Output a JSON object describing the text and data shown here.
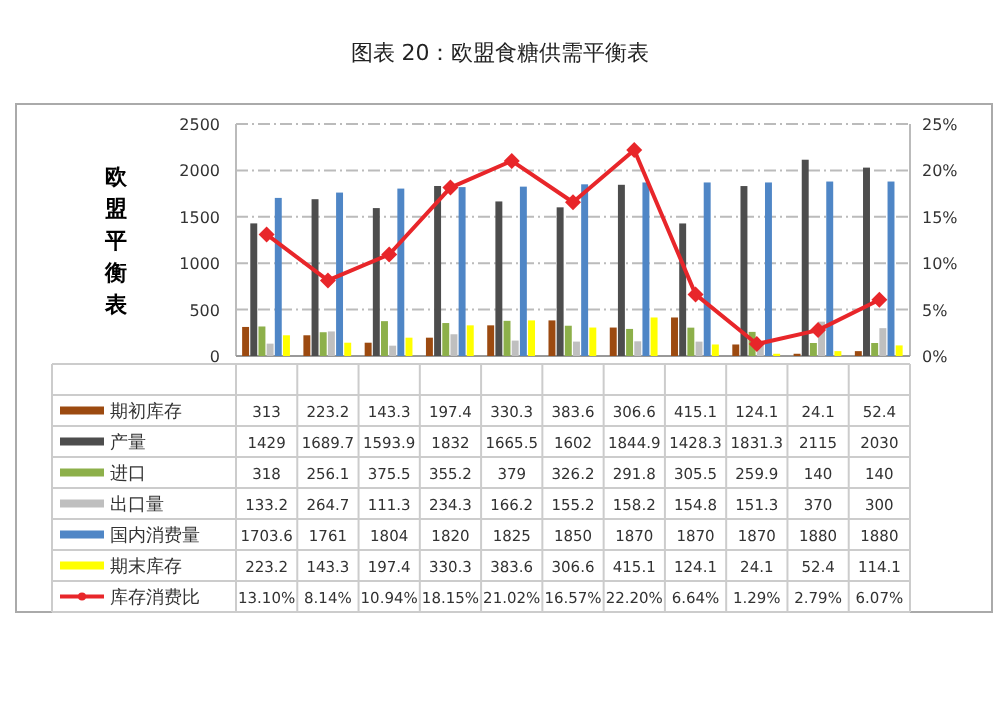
{
  "chart_data": {
    "type": "bar",
    "title": "图表 20：欧盟食糖供需平衡表",
    "ylabel": "欧盟平衡表",
    "categories": [
      null,
      null,
      null,
      null,
      null,
      null,
      null,
      null,
      null,
      null,
      null
    ],
    "ylim": [
      0,
      2500
    ],
    "yticks": [
      0,
      500,
      1000,
      1500,
      2000,
      2500
    ],
    "y2lim": [
      0,
      25
    ],
    "y2ticks": [
      {
        "value": 0,
        "label": "0%"
      },
      {
        "value": 5,
        "label": "5%"
      },
      {
        "value": 10,
        "label": "10%"
      },
      {
        "value": 15,
        "label": "15%"
      },
      {
        "value": 20,
        "label": "20%"
      },
      {
        "value": 25,
        "label": "25%"
      }
    ],
    "grid": "y",
    "legend": "bottom",
    "series": [
      {
        "name": "期初库存",
        "color": "#9c4a10",
        "values": [
          313,
          223.2,
          143.3,
          197.4,
          330.3,
          383.6,
          306.6,
          415.1,
          124.1,
          24.1,
          52.4
        ],
        "value_labels": [
          "313",
          "223.2",
          "143.3",
          "197.4",
          "330.3",
          "383.6",
          "306.6",
          "415.1",
          "124.1",
          "24.1",
          "52.4"
        ]
      },
      {
        "name": "产量",
        "color": "#4d4d4d",
        "values": [
          1429,
          1689.7,
          1593.9,
          1832,
          1665.5,
          1602,
          1844.9,
          1428.3,
          1831.3,
          2115,
          2030
        ],
        "value_labels": [
          "1429",
          "1689.7",
          "1593.9",
          "1832",
          "1665.5",
          "1602",
          "1844.9",
          "1428.3",
          "1831.3",
          "2115",
          "2030"
        ]
      },
      {
        "name": "进口",
        "color": "#8db04a",
        "values": [
          318,
          256.1,
          375.5,
          355.2,
          379,
          326.2,
          291.8,
          305.5,
          259.9,
          140,
          140
        ],
        "value_labels": [
          "318",
          "256.1",
          "375.5",
          "355.2",
          "379",
          "326.2",
          "291.8",
          "305.5",
          "259.9",
          "140",
          "140"
        ]
      },
      {
        "name": "出口量",
        "color": "#bfbfbf",
        "values": [
          133.2,
          264.7,
          111.3,
          234.3,
          166.2,
          155.2,
          158.2,
          154.8,
          151.3,
          370,
          300
        ],
        "value_labels": [
          "133.2",
          "264.7",
          "111.3",
          "234.3",
          "166.2",
          "155.2",
          "158.2",
          "154.8",
          "151.3",
          "370",
          "300"
        ]
      },
      {
        "name": "国内消费量",
        "color": "#4f86c6",
        "values": [
          1703.6,
          1761,
          1804,
          1820,
          1825,
          1850,
          1870,
          1870,
          1870,
          1880,
          1880
        ],
        "value_labels": [
          "1703.6",
          "1761",
          "1804",
          "1820",
          "1825",
          "1850",
          "1870",
          "1870",
          "1870",
          "1880",
          "1880"
        ]
      },
      {
        "name": "期末库存",
        "color": "#ffff00",
        "values": [
          223.2,
          143.3,
          197.4,
          330.3,
          383.6,
          306.6,
          415.1,
          124.1,
          24.1,
          52.4,
          114.1
        ],
        "value_labels": [
          "223.2",
          "143.3",
          "197.4",
          "330.3",
          "383.6",
          "306.6",
          "415.1",
          "124.1",
          "24.1",
          "52.4",
          "114.1"
        ]
      },
      {
        "name": "库存消费比",
        "type": "line",
        "axis": "y2",
        "marker": "diamond",
        "line_style": "solid",
        "color": "#e8262a",
        "values": [
          13.1,
          8.14,
          10.94,
          18.15,
          21.02,
          16.57,
          22.2,
          6.64,
          1.29,
          2.79,
          6.07
        ],
        "value_labels": [
          "13.10%",
          "8.14%",
          "10.94%",
          "18.15%",
          "21.02%",
          "16.57%",
          "22.20%",
          "6.64%",
          "1.29%",
          "2.79%",
          "6.07%"
        ]
      }
    ]
  }
}
